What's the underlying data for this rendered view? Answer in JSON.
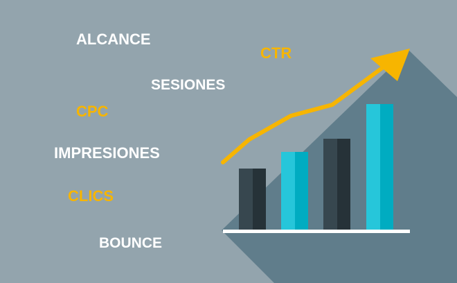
{
  "words": {
    "alcance": "ALCANCE",
    "ctr": "CTR",
    "sesiones": "SESIONES",
    "cpc": "CPC",
    "impresiones": "IMPRESIONES",
    "clics": "CLICS",
    "bounce": "BOUNCE"
  },
  "colors": {
    "background": "#93a4ad",
    "shadow": "#607d8b",
    "bar_dark": "#37474f",
    "bar_dark_shade": "#263238",
    "bar_cyan": "#26c6da",
    "bar_cyan_shade": "#00acc1",
    "accent_yellow": "#f7b500",
    "white": "#ffffff"
  },
  "chart": {
    "bars": [
      {
        "name": "bar-1",
        "style": "dark",
        "level": 0.43
      },
      {
        "name": "bar-2",
        "style": "cyan",
        "level": 0.55
      },
      {
        "name": "bar-3",
        "style": "dark",
        "level": 0.64
      },
      {
        "name": "bar-4",
        "style": "cyan",
        "level": 0.89
      }
    ],
    "trend": "up"
  }
}
